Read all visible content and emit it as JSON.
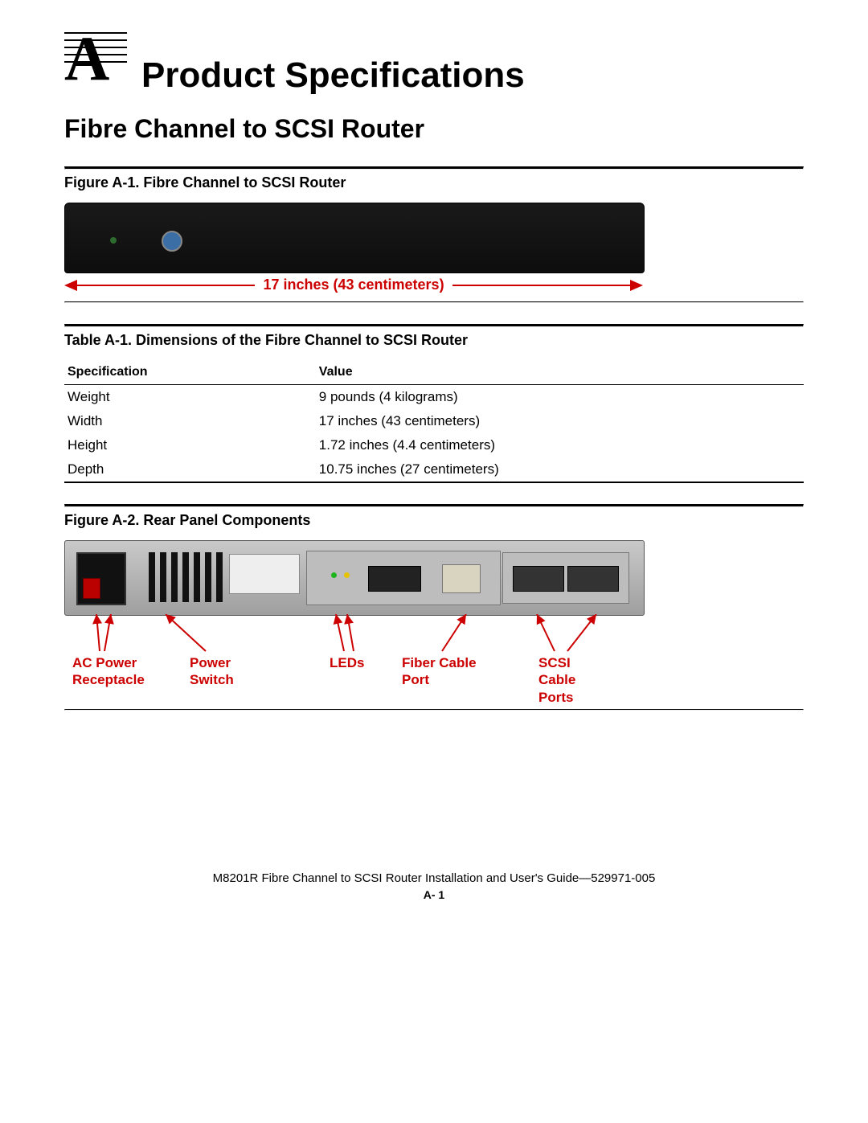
{
  "appendix": {
    "letter": "A",
    "title": "Product Specifications"
  },
  "section_title": "Fibre Channel to SCSI Router",
  "figure1": {
    "caption": "Figure A-1.  Fibre Channel to SCSI Router",
    "width_label": "17 inches (43 centimeters)",
    "callout_color": "#cc0000",
    "device_color": "#111111"
  },
  "table1": {
    "caption": "Table A-1.  Dimensions of the Fibre Channel to SCSI Router",
    "columns": [
      "Specification",
      "Value"
    ],
    "rows": [
      [
        "Weight",
        "9 pounds (4 kilograms)"
      ],
      [
        "Width",
        "17 inches (43 centimeters)"
      ],
      [
        "Height",
        "1.72 inches (4.4 centimeters)"
      ],
      [
        "Depth",
        "10.75 inches (27 centimeters)"
      ]
    ]
  },
  "figure2": {
    "caption": "Figure A-2.  Rear Panel Components",
    "callout_color": "#cc0000",
    "callouts": {
      "ac": "AC Power\nReceptacle",
      "psw": "Power\nSwitch",
      "leds": "LEDs",
      "fiber": "Fiber Cable\nPort",
      "scsi": "SCSI\nCable\nPorts"
    }
  },
  "footer": {
    "line": "M8201R Fibre Channel to SCSI Router Installation and User's Guide—529971-005",
    "page": "A- 1"
  }
}
